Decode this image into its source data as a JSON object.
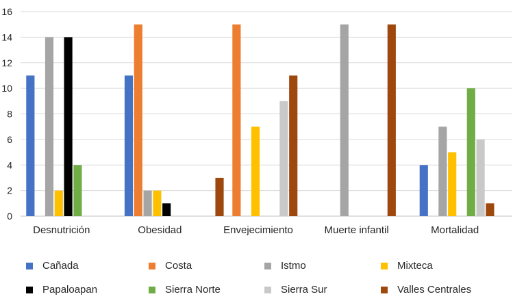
{
  "chart_data": {
    "type": "bar",
    "title": "",
    "xlabel": "",
    "ylabel": "",
    "ylim": [
      0,
      16
    ],
    "yticks": [
      0,
      2,
      4,
      6,
      8,
      10,
      12,
      14,
      16
    ],
    "grid": true,
    "legend_position": "bottom",
    "categories": [
      "Desnutrición",
      "Obesidad",
      "Envejecimiento",
      "Muerte infantil",
      "Mortalidad"
    ],
    "series": [
      {
        "name": "Cañada",
        "color": "#4472C4",
        "values": [
          11,
          11,
          0,
          0,
          4
        ]
      },
      {
        "name": "Costa",
        "color": "#ED7D31",
        "values": [
          0,
          15,
          15,
          0,
          0
        ]
      },
      {
        "name": "Istmo",
        "color": "#A5A5A5",
        "values": [
          14,
          2,
          0,
          15,
          7
        ]
      },
      {
        "name": "Mixteca",
        "color": "#FFC000",
        "values": [
          2,
          2,
          7,
          0,
          5
        ]
      },
      {
        "name": "Papaloapan",
        "color": "#000000",
        "values": [
          14,
          1,
          0,
          0,
          0
        ]
      },
      {
        "name": "Sierra Norte",
        "color": "#70AD47",
        "values": [
          4,
          0,
          0,
          0,
          10
        ]
      },
      {
        "name": "Sierra Sur",
        "color": "#C9C9C9",
        "values": [
          0,
          0,
          9,
          0,
          6
        ]
      },
      {
        "name": "Valles Centrales",
        "color": "#9E480E",
        "values": [
          0,
          0,
          11,
          15,
          1
        ]
      }
    ],
    "pre_bars": [
      {
        "category_index": 2,
        "series_index": 7,
        "value": 3
      }
    ]
  }
}
